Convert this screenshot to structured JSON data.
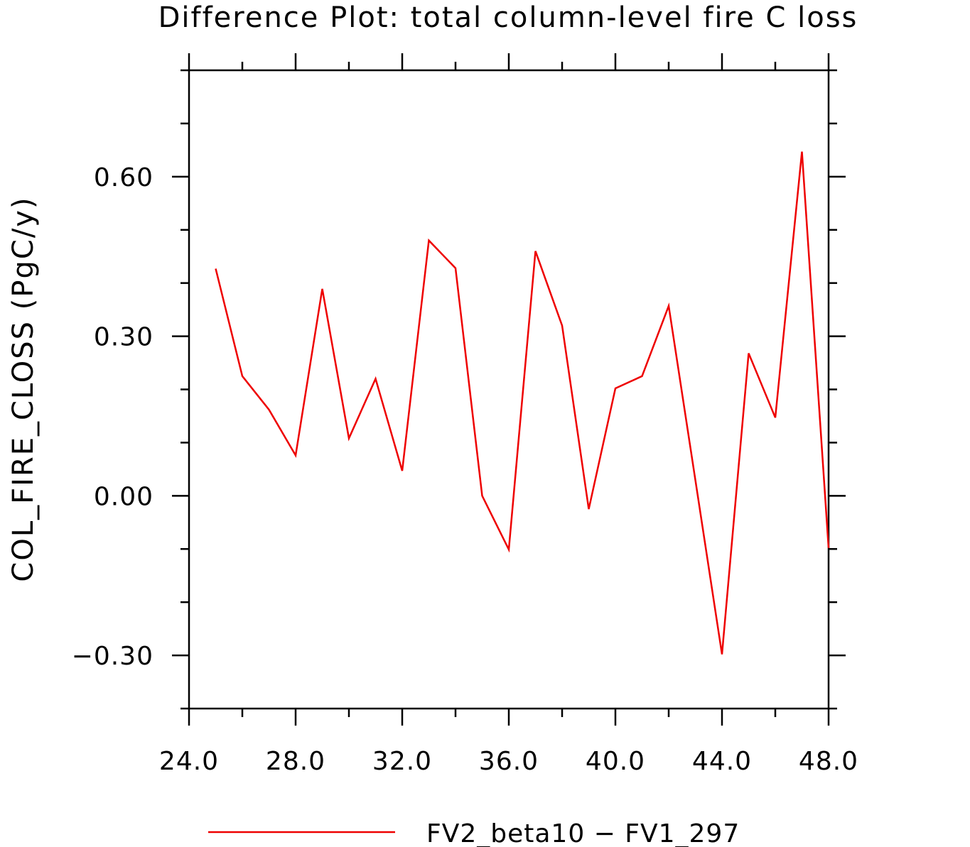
{
  "chart_data": {
    "type": "line",
    "title": "Difference Plot: total column-level fire C loss",
    "xlabel": "",
    "ylabel": "COL_FIRE_CLOSS  (PgC/y)",
    "xlim": [
      24,
      48
    ],
    "ylim": [
      -0.4,
      0.8
    ],
    "x_ticks": [
      24,
      28,
      32,
      36,
      40,
      44,
      48
    ],
    "x_tick_labels": [
      "24.0",
      "28.0",
      "32.0",
      "36.0",
      "40.0",
      "44.0",
      "48.0"
    ],
    "y_ticks": [
      -0.3,
      0.0,
      0.3,
      0.6
    ],
    "y_tick_labels": [
      "−0.30",
      "0.00",
      "0.30",
      "0.60"
    ],
    "grid": false,
    "legend_position": "bottom",
    "series": [
      {
        "name": "FV2_beta10 − FV1_297",
        "color": "#ee0000",
        "x": [
          25,
          26,
          27,
          28,
          29,
          30,
          31,
          32,
          33,
          34,
          35,
          36,
          37,
          38,
          39,
          40,
          41,
          42,
          43,
          44,
          45,
          46,
          47,
          48
        ],
        "values": [
          0.427,
          0.225,
          0.162,
          0.076,
          0.389,
          0.108,
          0.22,
          0.047,
          0.48,
          0.428,
          0.0,
          -0.101,
          0.46,
          0.32,
          -0.025,
          0.202,
          0.225,
          0.357,
          0.03,
          -0.298,
          0.268,
          0.147,
          0.647,
          -0.098
        ]
      }
    ]
  }
}
